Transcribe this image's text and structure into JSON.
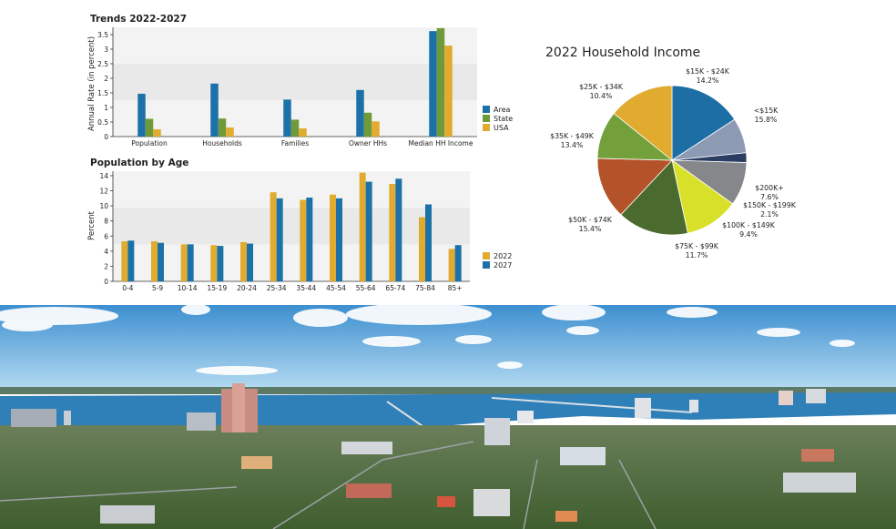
{
  "colors": {
    "area": "#1c72a8",
    "state": "#6f9a3a",
    "usa": "#e0ab2e",
    "y2022": "#e0ab2e",
    "y2027": "#1c72a8",
    "band": "#e9e9e9",
    "band_light": "#f3f3f3"
  },
  "chart_data": [
    {
      "type": "bar",
      "title": "Trends 2022-2027",
      "ylabel": "Annual Rate (in percent)",
      "xlabel": "",
      "categories": [
        "Population",
        "Households",
        "Families",
        "Owner HHs",
        "Median HH Income"
      ],
      "series": [
        {
          "name": "Area",
          "color_key": "area",
          "values": [
            1.47,
            1.82,
            1.27,
            1.6,
            3.62
          ]
        },
        {
          "name": "State",
          "color_key": "state",
          "values": [
            0.61,
            0.62,
            0.58,
            0.82,
            3.72
          ]
        },
        {
          "name": "USA",
          "color_key": "usa",
          "values": [
            0.25,
            0.31,
            0.28,
            0.52,
            3.12
          ]
        }
      ],
      "ylim": [
        0,
        3.75
      ],
      "yticks": [
        "0",
        "0.5",
        "1",
        "1.5",
        "2",
        "2.5",
        "3",
        "3.5"
      ],
      "ytick_values": [
        0,
        0.5,
        1,
        1.5,
        2,
        2.5,
        3,
        3.5
      ],
      "legend_position": "right"
    },
    {
      "type": "bar",
      "title": "Population by Age",
      "ylabel": "Percent",
      "xlabel": "",
      "categories": [
        "0-4",
        "5-9",
        "10-14",
        "15-19",
        "20-24",
        "25-34",
        "35-44",
        "45-54",
        "55-64",
        "65-74",
        "75-84",
        "85+"
      ],
      "series": [
        {
          "name": "2022",
          "color_key": "y2022",
          "values": [
            5.3,
            5.3,
            4.9,
            4.8,
            5.2,
            11.8,
            10.8,
            11.5,
            14.4,
            12.9,
            8.5,
            4.3
          ]
        },
        {
          "name": "2027",
          "color_key": "y2027",
          "values": [
            5.4,
            5.1,
            4.9,
            4.7,
            5.0,
            11.0,
            11.1,
            11.0,
            13.2,
            13.6,
            10.2,
            4.8
          ]
        }
      ],
      "ylim": [
        0,
        14.6
      ],
      "yticks": [
        "0",
        "2",
        "4",
        "6",
        "8",
        "10",
        "12",
        "14"
      ],
      "ytick_values": [
        0,
        2,
        4,
        6,
        8,
        10,
        12,
        14
      ],
      "legend_position": "right"
    },
    {
      "type": "pie",
      "title": "2022 Household Income",
      "slices": [
        {
          "label": "<$15K",
          "pct_label": "15.8%",
          "value": 15.8,
          "color": "#1c6ea4"
        },
        {
          "label": "$200K+",
          "pct_label": "7.6%",
          "value": 7.6,
          "color": "#8d9ab4"
        },
        {
          "label": "$150K - $199K",
          "pct_label": "2.1%",
          "value": 2.1,
          "color": "#2b3d60"
        },
        {
          "label": "$100K - $149K",
          "pct_label": "9.4%",
          "value": 9.4,
          "color": "#85878a"
        },
        {
          "label": "$75K - $99K",
          "pct_label": "11.7%",
          "value": 11.7,
          "color": "#d9e02a"
        },
        {
          "label": "$50K - $74K",
          "pct_label": "15.4%",
          "value": 15.4,
          "color": "#4a6b2d"
        },
        {
          "label": "$35K - $49K",
          "pct_label": "13.4%",
          "value": 13.4,
          "color": "#b4532a"
        },
        {
          "label": "$25K - $34K",
          "pct_label": "10.4%",
          "value": 10.4,
          "color": "#73a03a"
        },
        {
          "label": "$15K - $24K",
          "pct_label": "14.2%",
          "value": 14.2,
          "color": "#e0ab2e"
        }
      ]
    }
  ],
  "photo": {
    "sky_top": "#3d8fd0",
    "sky_bottom": "#b7dcf2",
    "water": "#2f7fb8",
    "land": "#4c6a3a"
  }
}
